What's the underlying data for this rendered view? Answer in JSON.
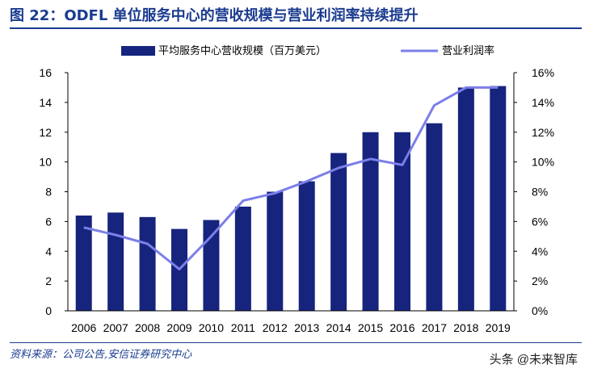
{
  "figure_title": "图 22：ODFL 单位服务中心的营收规模与营业利润率持续提升",
  "source": "资料来源：公司公告,安信证券研究中心",
  "watermark": "头条 @未来智库",
  "colors": {
    "bar": "#16247e",
    "line": "#7b7fe8",
    "title": "#1a3b8f"
  },
  "chart_data": {
    "type": "bar",
    "categories": [
      "2006",
      "2007",
      "2008",
      "2009",
      "2010",
      "2011",
      "2012",
      "2013",
      "2014",
      "2015",
      "2016",
      "2017",
      "2018",
      "2019"
    ],
    "series": [
      {
        "name": "平均服务中心营收规模（百万美元）",
        "type": "bar",
        "axis": "left",
        "values": [
          6.4,
          6.6,
          6.3,
          5.5,
          6.1,
          7.0,
          8.0,
          8.7,
          10.6,
          12.0,
          12.0,
          12.6,
          15.0,
          15.1
        ]
      },
      {
        "name": "营业利润率",
        "type": "line",
        "axis": "right",
        "values": [
          5.6,
          5.1,
          4.5,
          2.8,
          5.0,
          7.4,
          7.9,
          8.7,
          9.6,
          10.2,
          9.8,
          13.8,
          15.0,
          15.0
        ]
      }
    ],
    "left_axis": {
      "ylim": [
        0,
        16
      ],
      "ticks": [
        "0",
        "2",
        "4",
        "6",
        "8",
        "10",
        "12",
        "14",
        "16"
      ]
    },
    "right_axis": {
      "ylim": [
        0,
        16
      ],
      "ticks": [
        "0%",
        "2%",
        "4%",
        "6%",
        "8%",
        "10%",
        "12%",
        "14%",
        "16%"
      ]
    },
    "legend": {
      "placement": "top-center",
      "items": [
        "平均服务中心营收规模（百万美元）",
        "营业利润率"
      ]
    },
    "grid": false
  }
}
